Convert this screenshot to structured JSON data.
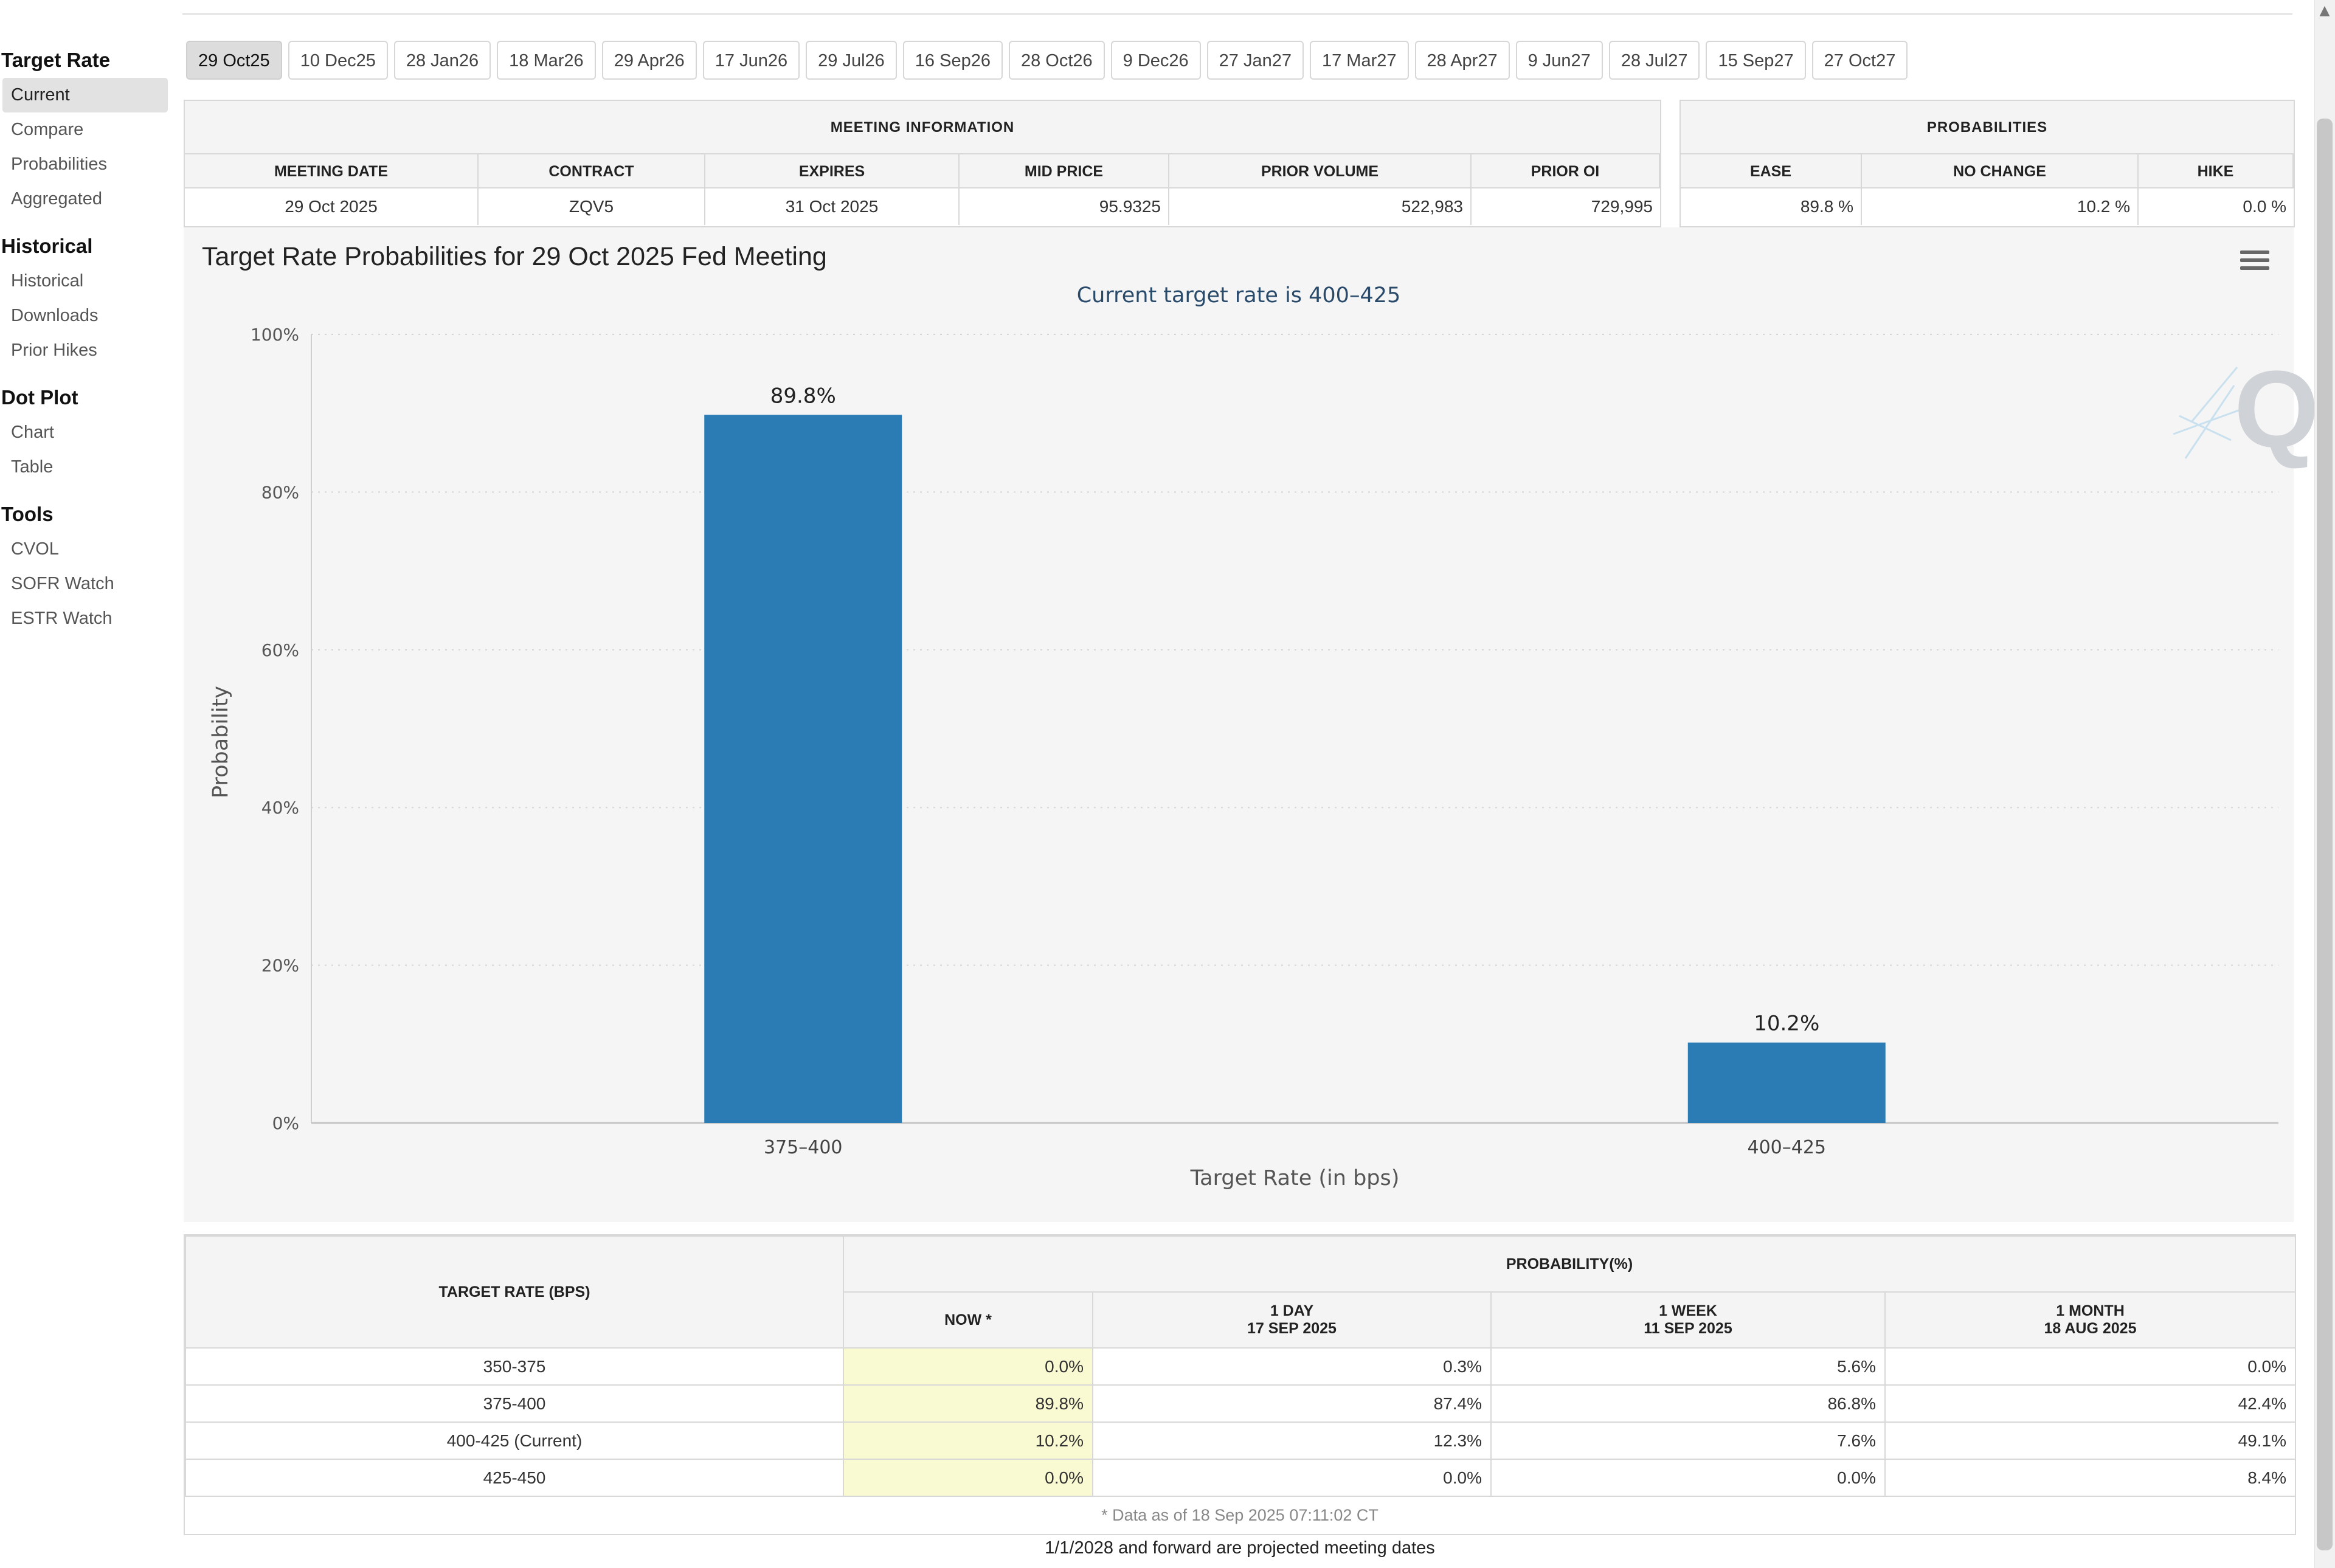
{
  "sidebar": {
    "sections": [
      {
        "heading": "Target Rate",
        "items": [
          "Current",
          "Compare",
          "Probabilities",
          "Aggregated"
        ]
      },
      {
        "heading": "Historical",
        "items": [
          "Historical",
          "Downloads",
          "Prior Hikes"
        ]
      },
      {
        "heading": "Dot Plot",
        "items": [
          "Chart",
          "Table"
        ]
      },
      {
        "heading": "Tools",
        "items": [
          "CVOL",
          "SOFR Watch",
          "ESTR Watch"
        ]
      }
    ],
    "active_item": "Current"
  },
  "tabs": [
    "29 Oct25",
    "10 Dec25",
    "28 Jan26",
    "18 Mar26",
    "29 Apr26",
    "17 Jun26",
    "29 Jul26",
    "16 Sep26",
    "28 Oct26",
    "9 Dec26",
    "27 Jan27",
    "17 Mar27",
    "28 Apr27",
    "9 Jun27",
    "28 Jul27",
    "15 Sep27",
    "27 Oct27"
  ],
  "active_tab": "29 Oct25",
  "meeting_info": {
    "title": "MEETING INFORMATION",
    "headers": [
      "MEETING DATE",
      "CONTRACT",
      "EXPIRES",
      "MID PRICE",
      "PRIOR VOLUME",
      "PRIOR OI"
    ],
    "values": [
      "29 Oct 2025",
      "ZQV5",
      "31 Oct 2025",
      "95.9325",
      "522,983",
      "729,995"
    ]
  },
  "probabilities": {
    "title": "PROBABILITIES",
    "headers": [
      "EASE",
      "NO CHANGE",
      "HIKE"
    ],
    "values": [
      "89.8 %",
      "10.2 %",
      "0.0 %"
    ]
  },
  "chart": {
    "menu_icon": "hamburger-menu-icon",
    "logo_text": "Q",
    "bar_color": "#2b7bb5"
  },
  "chart_data": {
    "type": "bar",
    "title": "Target Rate Probabilities for 29 Oct 2025 Fed Meeting",
    "subtitle": "Current target rate is 400–425",
    "categories": [
      "375–400",
      "400–425"
    ],
    "values": [
      89.8,
      10.2
    ],
    "data_labels": [
      "89.8%",
      "10.2%"
    ],
    "xlabel": "Target Rate (in bps)",
    "ylabel": "Probability",
    "ylim": [
      0,
      100
    ],
    "yticks": [
      "0%",
      "20%",
      "40%",
      "60%",
      "80%",
      "100%"
    ],
    "grid": true
  },
  "prob_table": {
    "col_target": "TARGET RATE (BPS)",
    "group_header": "PROBABILITY(%)",
    "col_now": "NOW *",
    "col_1day": "1 DAY",
    "col_1day_date": "17 SEP 2025",
    "col_1week": "1 WEEK",
    "col_1week_date": "11 SEP 2025",
    "col_1month": "1 MONTH",
    "col_1month_date": "18 AUG 2025",
    "rows": [
      {
        "rate": "350-375",
        "now": "0.0%",
        "day": "0.3%",
        "week": "5.6%",
        "month": "0.0%"
      },
      {
        "rate": "375-400",
        "now": "89.8%",
        "day": "87.4%",
        "week": "86.8%",
        "month": "42.4%"
      },
      {
        "rate": "400-425 (Current)",
        "now": "10.2%",
        "day": "12.3%",
        "week": "7.6%",
        "month": "49.1%"
      },
      {
        "rate": "425-450",
        "now": "0.0%",
        "day": "0.0%",
        "week": "0.0%",
        "month": "8.4%"
      }
    ],
    "footnote": "* Data as of 18 Sep 2025 07:11:02 CT"
  },
  "projected_note": "1/1/2028 and forward are projected meeting dates"
}
